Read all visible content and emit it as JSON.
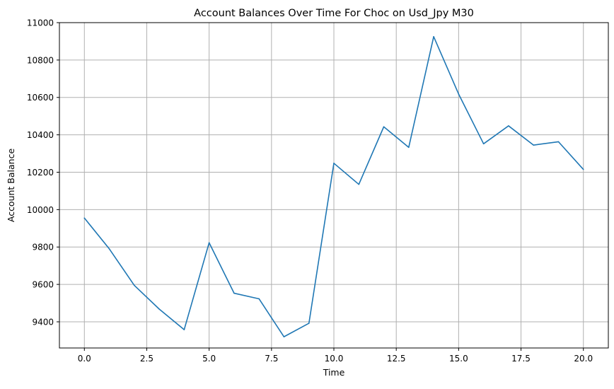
{
  "chart_data": {
    "type": "line",
    "title": "Account Balances Over Time For Choc on Usd_Jpy M30",
    "xlabel": "Time",
    "ylabel": "Account Balance",
    "xlim": [
      -1,
      21
    ],
    "ylim": [
      9260,
      11000
    ],
    "xticks": [
      0.0,
      2.5,
      5.0,
      7.5,
      10.0,
      12.5,
      15.0,
      17.5,
      20.0
    ],
    "xtick_labels": [
      "0.0",
      "2.5",
      "5.0",
      "7.5",
      "10.0",
      "12.5",
      "15.0",
      "17.5",
      "20.0"
    ],
    "yticks": [
      9400,
      9600,
      9800,
      10000,
      10200,
      10400,
      10600,
      10800,
      11000
    ],
    "ytick_labels": [
      "9400",
      "9600",
      "9800",
      "10000",
      "10200",
      "10400",
      "10600",
      "10800",
      "11000"
    ],
    "grid": true,
    "line_color": "#1f77b4",
    "grid_color": "#b0b0b0",
    "series": [
      {
        "x": [
          0,
          1,
          2,
          3,
          4,
          5,
          6,
          7,
          8,
          9,
          10,
          11,
          12,
          13,
          14,
          15,
          16,
          17,
          18,
          19,
          20
        ],
        "values": [
          9955,
          9790,
          9595,
          9468,
          9358,
          9823,
          9553,
          9523,
          9320,
          9392,
          10248,
          10135,
          10443,
          10333,
          10925,
          10618,
          10352,
          10448,
          10345,
          10363,
          10215
        ]
      }
    ]
  }
}
